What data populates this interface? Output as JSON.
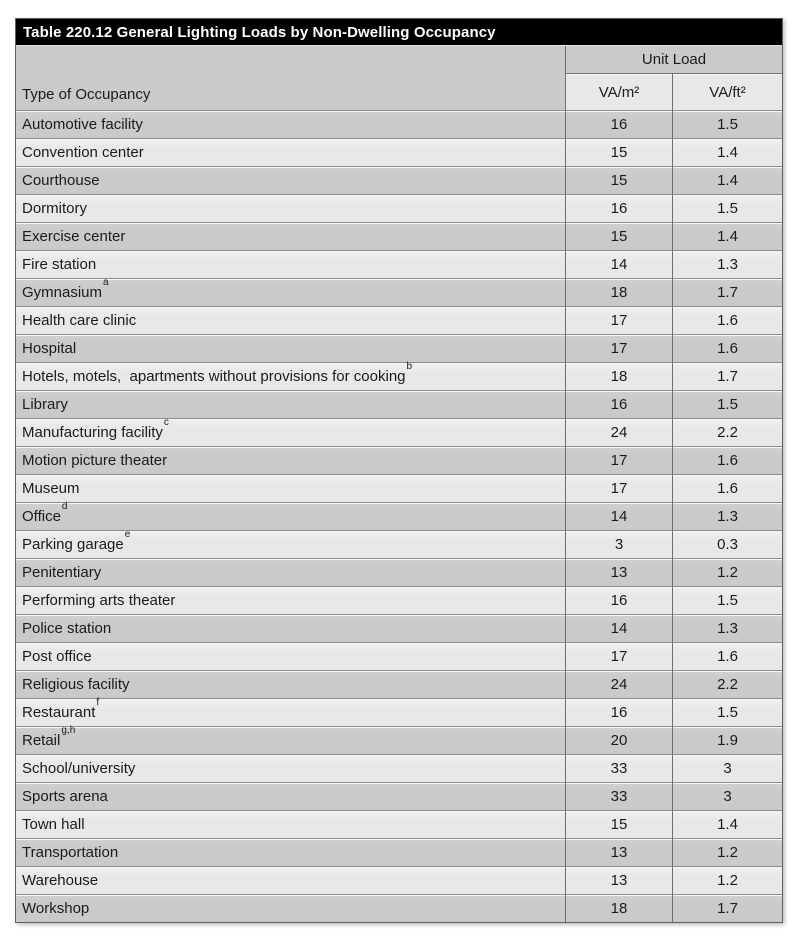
{
  "table": {
    "title": "Table 220.12 General Lighting Loads by Non-Dwelling Occupancy",
    "columns": {
      "occupancy": "Type of Occupancy",
      "unit_load_group": "Unit Load",
      "va_per_m2": "VA/m²",
      "va_per_ft2": "VA/ft²"
    },
    "rows": [
      {
        "occupancy": "Automotive facility",
        "note": "",
        "va_per_m2": "16",
        "va_per_ft2": "1.5"
      },
      {
        "occupancy": "Convention center",
        "note": "",
        "va_per_m2": "15",
        "va_per_ft2": "1.4"
      },
      {
        "occupancy": "Courthouse",
        "note": "",
        "va_per_m2": "15",
        "va_per_ft2": "1.4"
      },
      {
        "occupancy": "Dormitory",
        "note": "",
        "va_per_m2": "16",
        "va_per_ft2": "1.5"
      },
      {
        "occupancy": "Exercise center",
        "note": "",
        "va_per_m2": "15",
        "va_per_ft2": "1.4"
      },
      {
        "occupancy": "Fire station",
        "note": "",
        "va_per_m2": "14",
        "va_per_ft2": "1.3"
      },
      {
        "occupancy": "Gymnasium",
        "note": "a",
        "va_per_m2": "18",
        "va_per_ft2": "1.7"
      },
      {
        "occupancy": "Health care clinic",
        "note": "",
        "va_per_m2": "17",
        "va_per_ft2": "1.6"
      },
      {
        "occupancy": "Hospital",
        "note": "",
        "va_per_m2": "17",
        "va_per_ft2": "1.6"
      },
      {
        "occupancy": "Hotels, motels,  apartments without provisions for cooking",
        "note": "b",
        "va_per_m2": "18",
        "va_per_ft2": "1.7"
      },
      {
        "occupancy": "Library",
        "note": "",
        "va_per_m2": "16",
        "va_per_ft2": "1.5"
      },
      {
        "occupancy": "Manufacturing facility",
        "note": "c",
        "va_per_m2": "24",
        "va_per_ft2": "2.2"
      },
      {
        "occupancy": "Motion picture theater",
        "note": "",
        "va_per_m2": "17",
        "va_per_ft2": "1.6"
      },
      {
        "occupancy": "Museum",
        "note": "",
        "va_per_m2": "17",
        "va_per_ft2": "1.6"
      },
      {
        "occupancy": "Office",
        "note": "d",
        "va_per_m2": "14",
        "va_per_ft2": "1.3"
      },
      {
        "occupancy": "Parking garage",
        "note": "e",
        "va_per_m2": "3",
        "va_per_ft2": "0.3"
      },
      {
        "occupancy": "Penitentiary",
        "note": "",
        "va_per_m2": "13",
        "va_per_ft2": "1.2"
      },
      {
        "occupancy": "Performing arts theater",
        "note": "",
        "va_per_m2": "16",
        "va_per_ft2": "1.5"
      },
      {
        "occupancy": "Police station",
        "note": "",
        "va_per_m2": "14",
        "va_per_ft2": "1.3"
      },
      {
        "occupancy": "Post office",
        "note": "",
        "va_per_m2": "17",
        "va_per_ft2": "1.6"
      },
      {
        "occupancy": "Religious facility",
        "note": "",
        "va_per_m2": "24",
        "va_per_ft2": "2.2"
      },
      {
        "occupancy": "Restaurant",
        "note": "f",
        "va_per_m2": "16",
        "va_per_ft2": "1.5"
      },
      {
        "occupancy": "Retail",
        "note": "g,h",
        "va_per_m2": "20",
        "va_per_ft2": "1.9"
      },
      {
        "occupancy": "School/university",
        "note": "",
        "va_per_m2": "33",
        "va_per_ft2": "3"
      },
      {
        "occupancy": "Sports arena",
        "note": "",
        "va_per_m2": "33",
        "va_per_ft2": "3"
      },
      {
        "occupancy": "Town hall",
        "note": "",
        "va_per_m2": "15",
        "va_per_ft2": "1.4"
      },
      {
        "occupancy": "Transportation",
        "note": "",
        "va_per_m2": "13",
        "va_per_ft2": "1.2"
      },
      {
        "occupancy": "Warehouse",
        "note": "",
        "va_per_m2": "13",
        "va_per_ft2": "1.2"
      },
      {
        "occupancy": "Workshop",
        "note": "",
        "va_per_m2": "18",
        "va_per_ft2": "1.7"
      }
    ]
  },
  "colors": {
    "title_bg": "#000000",
    "title_text": "#ffffff",
    "row_dark": "#cacaca",
    "row_light": "#e8e8e8",
    "header_bg": "#cacaca",
    "subheader_bg": "#e8e8e8",
    "border": "#6e6e6e",
    "text": "#1b1b1b"
  }
}
